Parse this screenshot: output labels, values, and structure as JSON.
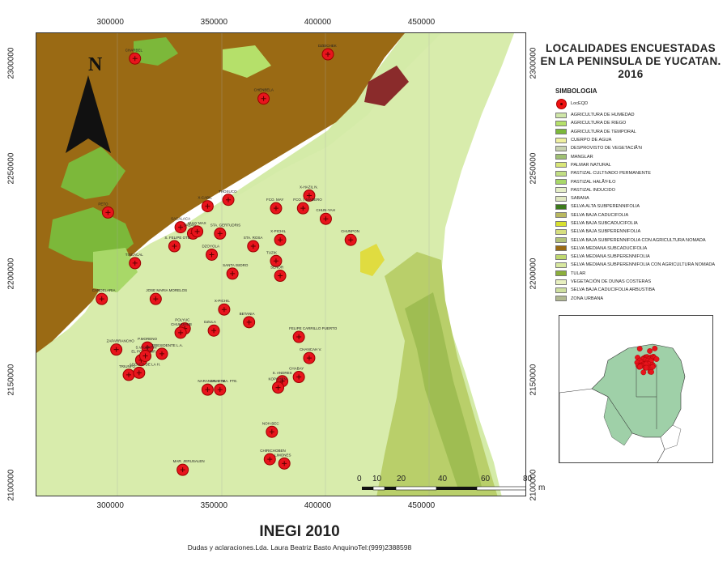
{
  "title_lines": [
    "LOCALIDADES ENCUESTADAS",
    "EN LA PENINSULA DE YUCATAN.",
    "2016"
  ],
  "legend_heading": "SIMBOLOGIA",
  "locality_legend_label": "LocEQD",
  "legend_items": [
    {
      "label": "AGRICULTURA DE HUMEDAD",
      "color": "#cfe6a8"
    },
    {
      "label": "AGRICULTURA DE RIEGO",
      "color": "#b5e06a"
    },
    {
      "label": "AGRICULTURA DE TEMPORAL",
      "color": "#7cb83a"
    },
    {
      "label": "CUERPO DE AGUA",
      "color": "#f0f0a0"
    },
    {
      "label": "DESPROVISTO DE VEGETACIÃ'N",
      "color": "#c8d2b0"
    },
    {
      "label": "MANGLAR",
      "color": "#9fc074"
    },
    {
      "label": "PALMAR NATURAL",
      "color": "#d9e678"
    },
    {
      "label": "PASTIZAL CULTIVADO PERMANENTE",
      "color": "#c2df84"
    },
    {
      "label": "PASTIZAL HALÃ'FILO",
      "color": "#a8d868"
    },
    {
      "label": "PASTIZAL INDUCIDO",
      "color": "#e6efc8"
    },
    {
      "label": "SABANA",
      "color": "#e0e8c0"
    },
    {
      "label": "SELVA ALTA SUBPERENNIFOLIA",
      "color": "#3c7a1c"
    },
    {
      "label": "SELVA BAJA CADUCIFOLIA",
      "color": "#b9b860"
    },
    {
      "label": "SELVA BAJA SUBCADUCIFOLIA",
      "color": "#d8e030"
    },
    {
      "label": "SELVA BAJA SUBPERENNIFOLIA",
      "color": "#d7df80"
    },
    {
      "label": "SELVA BAJA SUBPERENNIFOLIA CON AGRICULTURA NOMADA",
      "color": "#b2c27a"
    },
    {
      "label": "SELVA MEDIANA SUBCADUCIFOLIA",
      "color": "#9a6a14"
    },
    {
      "label": "SELVA MEDIANA SUBPERENNIFOLIA",
      "color": "#bfd870"
    },
    {
      "label": "SELVA MEDIANA SUBPERENNIFOLIA CON AGRICULTURA NOMADA",
      "color": "#d8e8a0"
    },
    {
      "label": "TULAR",
      "color": "#8caf3c"
    },
    {
      "label": "VEGETACIÓN DE DUNAS COSTERAS",
      "color": "#e8f0c0"
    },
    {
      "label": "SELVA BAJA CADUCIFOLIA ARBUSTIBA",
      "color": "#cfe0a0"
    },
    {
      "label": "ZONA URBANA",
      "color": "#b0b890"
    }
  ],
  "x_ticks": [
    "300000",
    "350000",
    "400000",
    "450000"
  ],
  "y_ticks": [
    "2300000",
    "2250000",
    "2200000",
    "2150000",
    "2100000"
  ],
  "north_label": "N",
  "scale_labels": [
    "0",
    "10",
    "20",
    "40",
    "60",
    "80"
  ],
  "scale_unit": "m",
  "localities": [
    {
      "name": "CHARBEL",
      "x": 311,
      "y": 2301
    },
    {
      "name": "DZEICHEK",
      "x": 404,
      "y": 2303
    },
    {
      "name": "CHENBELA",
      "x": 373,
      "y": 2282
    },
    {
      "name": "PETO",
      "x": 298,
      "y": 2228
    },
    {
      "name": "X-CABIL",
      "x": 346,
      "y": 2231
    },
    {
      "name": "THOSUCO",
      "x": 356,
      "y": 2234
    },
    {
      "name": "FCO. MAY",
      "x": 379,
      "y": 2230
    },
    {
      "name": "X-HAZIL N.",
      "x": 395,
      "y": 2236
    },
    {
      "name": "FCO. I. MADERO",
      "x": 392,
      "y": 2230
    },
    {
      "name": "CHUN-YAH",
      "x": 403,
      "y": 2225
    },
    {
      "name": "SACALACA",
      "x": 333,
      "y": 2221
    },
    {
      "name": "SABAN",
      "x": 339,
      "y": 2218
    },
    {
      "name": "HUAY MAX",
      "x": 341,
      "y": 2219
    },
    {
      "name": "STA. GERTUDRIS",
      "x": 352,
      "y": 2218
    },
    {
      "name": "X-PICHIL",
      "x": 381,
      "y": 2215
    },
    {
      "name": "CHUNPON",
      "x": 415,
      "y": 2215
    },
    {
      "name": "S. FELIPE OTE.",
      "x": 330,
      "y": 2212
    },
    {
      "name": "DZOYOLA",
      "x": 348,
      "y": 2208
    },
    {
      "name": "STA. ROSA",
      "x": 368,
      "y": 2212
    },
    {
      "name": "TIXCACAL",
      "x": 311,
      "y": 2204
    },
    {
      "name": "TUZIK",
      "x": 379,
      "y": 2205
    },
    {
      "name": "SANTA ISIDRO",
      "x": 358,
      "y": 2199
    },
    {
      "name": "SENOR",
      "x": 381,
      "y": 2198
    },
    {
      "name": "CANDELARIA",
      "x": 295,
      "y": 2187
    },
    {
      "name": "JOSE MARIA MORELOS",
      "x": 321,
      "y": 2187
    },
    {
      "name": "X-PICHIL",
      "x": 354,
      "y": 2182
    },
    {
      "name": "BETANIA",
      "x": 366,
      "y": 2176
    },
    {
      "name": "POLYUC",
      "x": 335,
      "y": 2173
    },
    {
      "name": "CHUHUHUB",
      "x": 333,
      "y": 2171
    },
    {
      "name": "DZULA",
      "x": 349,
      "y": 2172
    },
    {
      "name": "FELIPE CARRILLO PUERTO",
      "x": 390,
      "y": 2169
    },
    {
      "name": "ZAPARRANCHO",
      "x": 302,
      "y": 2163
    },
    {
      "name": "P.MORENO",
      "x": 317,
      "y": 2164
    },
    {
      "name": "PRESIDENTE L.A.",
      "x": 324,
      "y": 2161
    },
    {
      "name": "CHANCAH V.",
      "x": 395,
      "y": 2159
    },
    {
      "name": "EL PORVENIR",
      "x": 314,
      "y": 2158
    },
    {
      "name": "S.VALENTIN",
      "x": 316,
      "y": 2160
    },
    {
      "name": "TRIUNFO",
      "x": 308,
      "y": 2151
    },
    {
      "name": "ADOLFO DE LA H.",
      "x": 313,
      "y": 2152
    },
    {
      "name": "NARANJAL PTE.",
      "x": 346,
      "y": 2144
    },
    {
      "name": "GRAL. MA. FTE.",
      "x": 352,
      "y": 2144
    },
    {
      "name": "S. ANDRES",
      "x": 382,
      "y": 2148
    },
    {
      "name": "KOPCHEN",
      "x": 380,
      "y": 2145
    },
    {
      "name": "CHABAY",
      "x": 390,
      "y": 2150
    },
    {
      "name": "NOH-BEC",
      "x": 377,
      "y": 2124
    },
    {
      "name": "CHIRICHOBEN",
      "x": 376,
      "y": 2111
    },
    {
      "name": "LIMONES",
      "x": 383,
      "y": 2109
    },
    {
      "name": "MAR. JERUSALEN",
      "x": 334,
      "y": 2106
    }
  ],
  "footer_title": "INEGI 2010",
  "footer_subtitle": "Dudas y aclaraciones.Lda. Laura Beatriz Basto AnquinoTel:(999)2388598"
}
